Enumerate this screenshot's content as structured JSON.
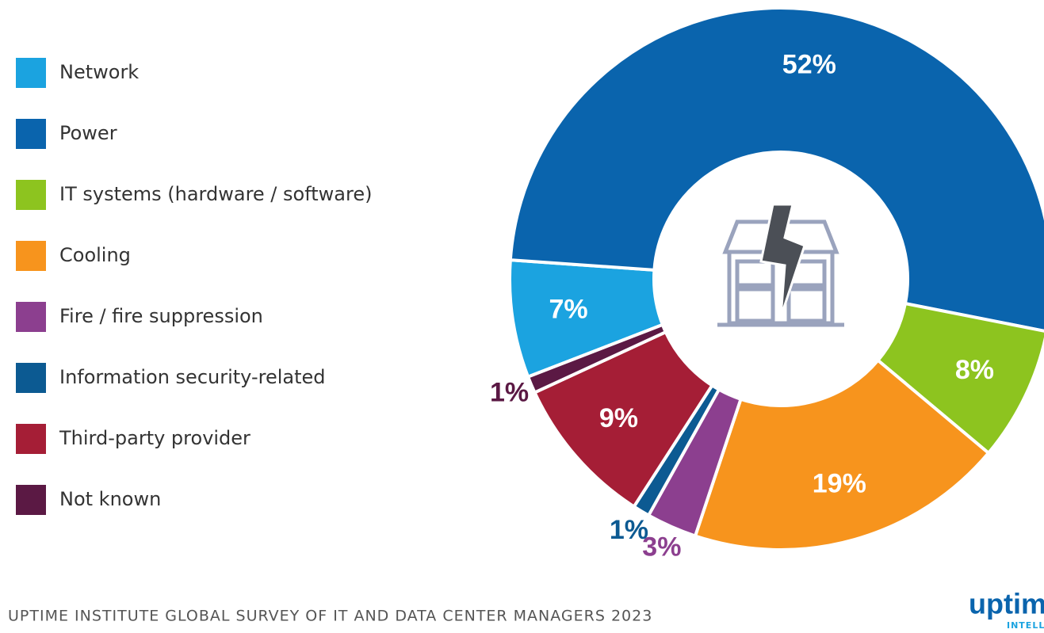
{
  "chart_data": {
    "type": "donut",
    "categories": [
      "Network",
      "Power",
      "IT systems (hardware / software)",
      "Cooling",
      "Fire / fire suppression",
      "Information security-related",
      "Third-party provider",
      "Not known"
    ],
    "values": [
      7,
      52,
      8,
      19,
      3,
      1,
      9,
      1
    ],
    "value_labels": [
      "7%",
      "52%",
      "8%",
      "19%",
      "3%",
      "1%",
      "9%",
      "1%"
    ],
    "colors": [
      "#1ba3e0",
      "#0a64ad",
      "#8dc41f",
      "#f7941d",
      "#8c3f8f",
      "#0c5a92",
      "#a51e36",
      "#5b1944"
    ],
    "source": "UPTIME INSTITUTE GLOBAL SURVEY OF IT AND DATA CENTER MANAGERS 2023",
    "logo": "uptim",
    "logo_sub": "INTELL"
  }
}
